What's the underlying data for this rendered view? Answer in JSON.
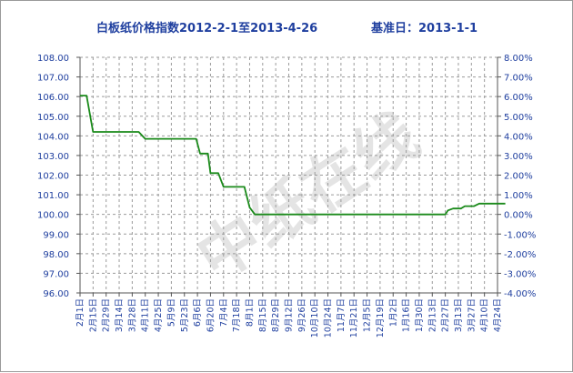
{
  "chart_data": {
    "type": "line",
    "title": "白板纸价格指数2012-2-1至2013-4-26",
    "subtitle": "基准日：2013-1-1",
    "watermark": "中纸在线",
    "y_left": {
      "ylim": [
        96,
        108
      ],
      "ticks": [
        "96.00",
        "97.00",
        "98.00",
        "99.00",
        "100.00",
        "101.00",
        "102.00",
        "103.00",
        "104.00",
        "105.00",
        "106.00",
        "107.00",
        "108.00"
      ]
    },
    "y_right": {
      "ylim": [
        -4,
        8
      ],
      "ticks": [
        "-4.00%",
        "-3.00%",
        "-2.00%",
        "-1.00%",
        "0.00%",
        "1.00%",
        "2.00%",
        "3.00%",
        "4.00%",
        "5.00%",
        "6.00%",
        "7.00%",
        "8.00%"
      ]
    },
    "categories": [
      "2月1日",
      "2月15日",
      "2月29日",
      "3月14日",
      "3月28日",
      "4月11日",
      "4月25日",
      "5月9日",
      "5月23日",
      "6月6日",
      "6月20日",
      "7月4日",
      "7月18日",
      "8月1日",
      "8月15日",
      "8月29日",
      "9月12日",
      "9月26日",
      "10月10日",
      "10月24日",
      "11月7日",
      "11月21日",
      "12月5日",
      "12月19日",
      "1月2日",
      "1月16日",
      "1月30日",
      "2月13日",
      "2月27日",
      "3月13日",
      "3月27日",
      "4月10日",
      "4月24日"
    ],
    "grid": true,
    "line_color": "#1a8a1a",
    "series": [
      {
        "values": [
          [
            0,
            106.05
          ],
          [
            0.5,
            106.05
          ],
          [
            1,
            104.2
          ],
          [
            2,
            104.2
          ],
          [
            3,
            104.2
          ],
          [
            4,
            104.2
          ],
          [
            4.5,
            104.2
          ],
          [
            5,
            103.85
          ],
          [
            6,
            103.85
          ],
          [
            7,
            103.85
          ],
          [
            8,
            103.85
          ],
          [
            8.9,
            103.85
          ],
          [
            9.2,
            103.1
          ],
          [
            9.8,
            103.1
          ],
          [
            10,
            102.1
          ],
          [
            10.6,
            102.1
          ],
          [
            11,
            101.4
          ],
          [
            12,
            101.4
          ],
          [
            12.6,
            101.4
          ],
          [
            13,
            100.35
          ],
          [
            13.4,
            100.0
          ],
          [
            14,
            100.0
          ],
          [
            15,
            100.0
          ],
          [
            16,
            100.0
          ],
          [
            17,
            100.0
          ],
          [
            18,
            100.0
          ],
          [
            19,
            100.0
          ],
          [
            20,
            100.0
          ],
          [
            21,
            100.0
          ],
          [
            22,
            100.0
          ],
          [
            23,
            100.0
          ],
          [
            24,
            100.0
          ],
          [
            25,
            100.0
          ],
          [
            26,
            100.0
          ],
          [
            27,
            100.0
          ],
          [
            28,
            100.0
          ],
          [
            28.2,
            100.2
          ],
          [
            28.6,
            100.3
          ],
          [
            29.2,
            100.3
          ],
          [
            29.5,
            100.42
          ],
          [
            30.2,
            100.42
          ],
          [
            30.6,
            100.55
          ],
          [
            31.2,
            100.55
          ],
          [
            32,
            100.55
          ],
          [
            32.6,
            100.55
          ]
        ]
      }
    ]
  }
}
